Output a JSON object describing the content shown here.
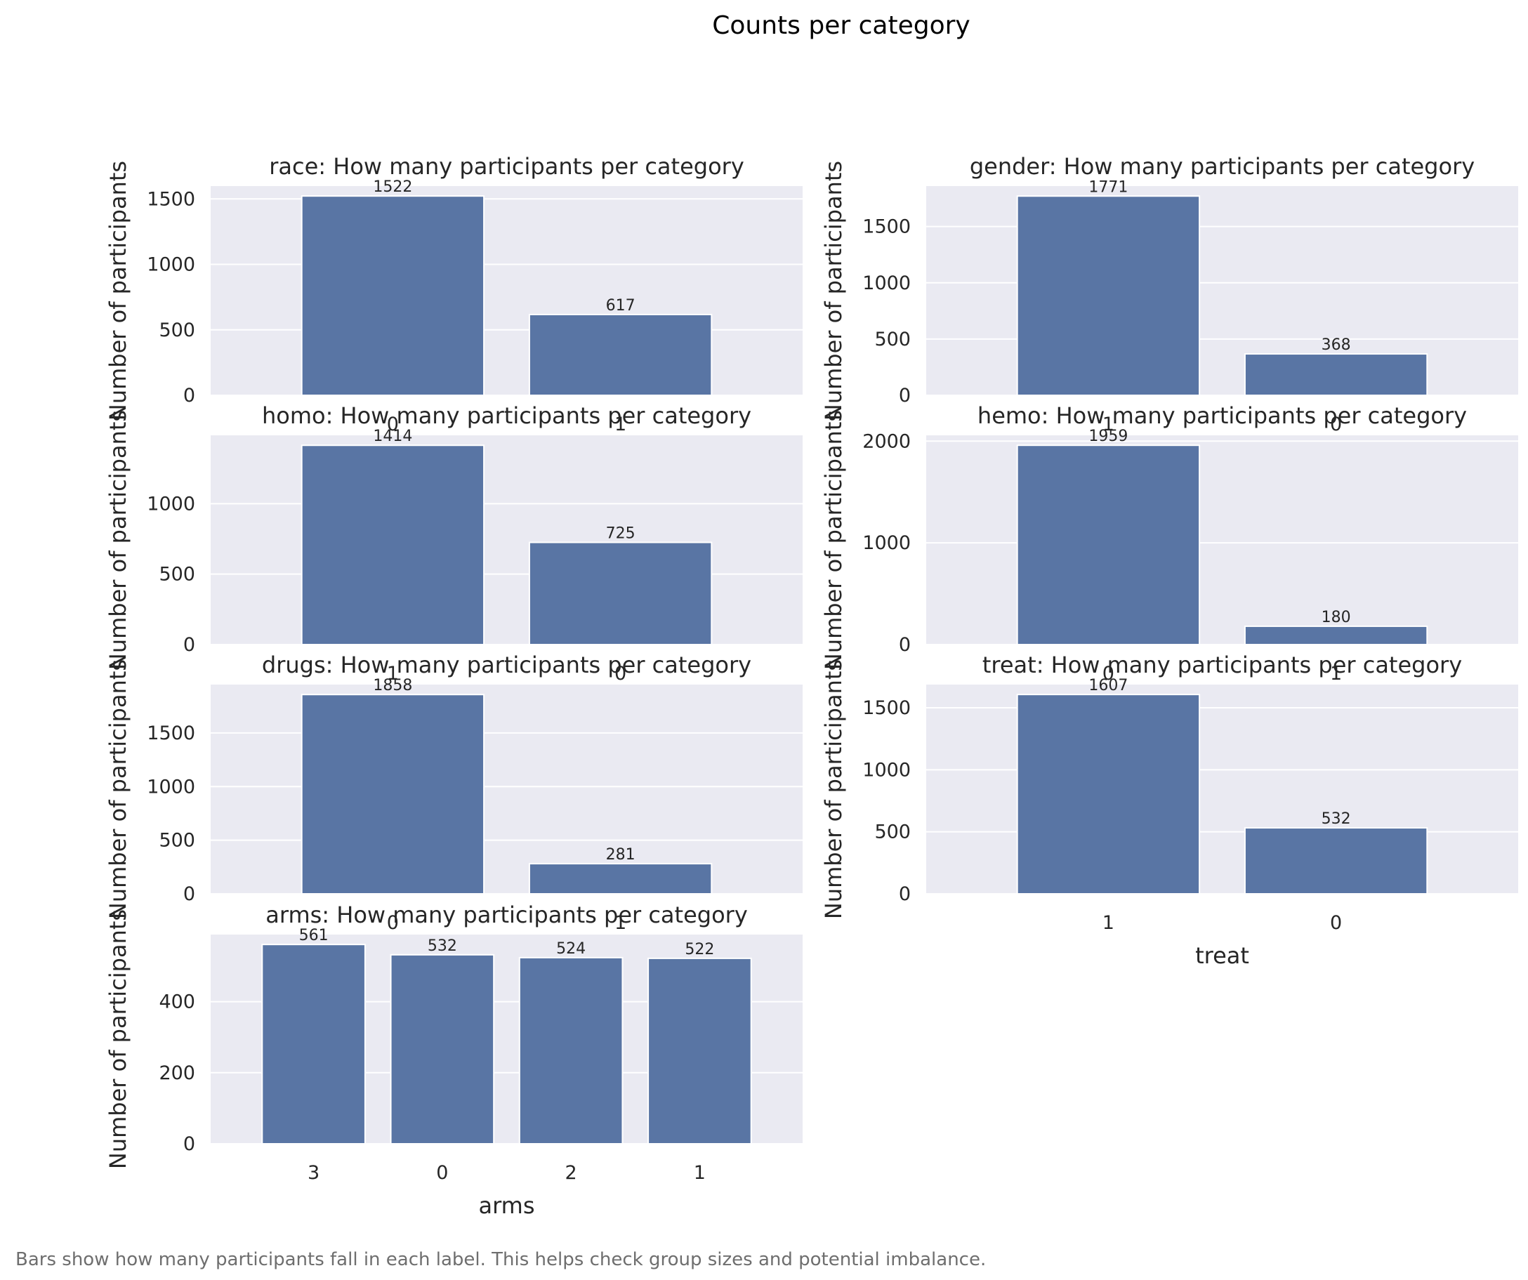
{
  "title": "Counts per category",
  "caption": "Bars show how many participants fall in each label. This helps check group sizes and potential imbalance.",
  "colors": {
    "bar": "#5975a4",
    "panel_bg": "#eaeaf2",
    "grid": "#ffffff",
    "text": "#262626",
    "caption": "#6e6e6e"
  },
  "chart_data": [
    {
      "type": "bar",
      "title": "race: How many participants per category",
      "xlabel": "",
      "ylabel": "Number of participants",
      "categories": [
        "0",
        "1"
      ],
      "values": [
        1522,
        617
      ],
      "ylim": [
        0,
        1598
      ],
      "yticks": [
        0,
        500,
        1000,
        1500
      ],
      "grid": true
    },
    {
      "type": "bar",
      "title": "gender: How many participants per category",
      "xlabel": "",
      "ylabel": "Number of participants",
      "categories": [
        "1",
        "0"
      ],
      "values": [
        1771,
        368
      ],
      "ylim": [
        0,
        1860
      ],
      "yticks": [
        0,
        500,
        1000,
        1500
      ],
      "grid": true
    },
    {
      "type": "bar",
      "title": "homo: How many participants per category",
      "xlabel": "",
      "ylabel": "Number of participants",
      "categories": [
        "1",
        "0"
      ],
      "values": [
        1414,
        725
      ],
      "ylim": [
        0,
        1485
      ],
      "yticks": [
        0,
        500,
        1000
      ],
      "grid": true
    },
    {
      "type": "bar",
      "title": "hemo: How many participants per category",
      "xlabel": "",
      "ylabel": "Number of participants",
      "categories": [
        "0",
        "1"
      ],
      "values": [
        1959,
        180
      ],
      "ylim": [
        0,
        2057
      ],
      "yticks": [
        0,
        1000,
        2000
      ],
      "grid": true
    },
    {
      "type": "bar",
      "title": "drugs: How many participants per category",
      "xlabel": "",
      "ylabel": "Number of participants",
      "categories": [
        "0",
        "1"
      ],
      "values": [
        1858,
        281
      ],
      "ylim": [
        0,
        1951
      ],
      "yticks": [
        0,
        500,
        1000,
        1500
      ],
      "grid": true
    },
    {
      "type": "bar",
      "title": "treat: How many participants per category",
      "xlabel": "treat",
      "ylabel": "Number of participants",
      "categories": [
        "1",
        "0"
      ],
      "values": [
        1607,
        532
      ],
      "ylim": [
        0,
        1687
      ],
      "yticks": [
        0,
        500,
        1000,
        1500
      ],
      "grid": true
    },
    {
      "type": "bar",
      "title": "arms: How many participants per category",
      "xlabel": "arms",
      "ylabel": "Number of participants",
      "categories": [
        "3",
        "0",
        "2",
        "1"
      ],
      "values": [
        561,
        532,
        524,
        522
      ],
      "ylim": [
        0,
        589
      ],
      "yticks": [
        0,
        200,
        400
      ],
      "grid": true
    }
  ]
}
